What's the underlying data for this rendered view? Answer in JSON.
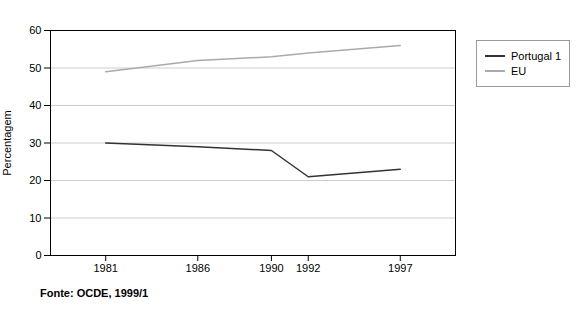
{
  "chart_data": {
    "type": "line",
    "ylabel": "Percentagem",
    "note": "Fonte: OCDE, 1999/1",
    "x": [
      1981,
      1986,
      1990,
      1992,
      1997
    ],
    "series": [
      {
        "name": "Portugal 1",
        "color": "#333333",
        "values": [
          30,
          29,
          28,
          21,
          23
        ]
      },
      {
        "name": "EU",
        "color": "#aaaaaa",
        "values": [
          49,
          52,
          53,
          54,
          56
        ]
      }
    ],
    "xlim": [
      1978,
      2000
    ],
    "xticks": [
      1981,
      1986,
      1990,
      1992,
      1997
    ],
    "ylim": [
      0,
      60
    ],
    "yticks": [
      0,
      10,
      20,
      30,
      40,
      50,
      60
    ],
    "grid": "y",
    "legend": "right"
  }
}
